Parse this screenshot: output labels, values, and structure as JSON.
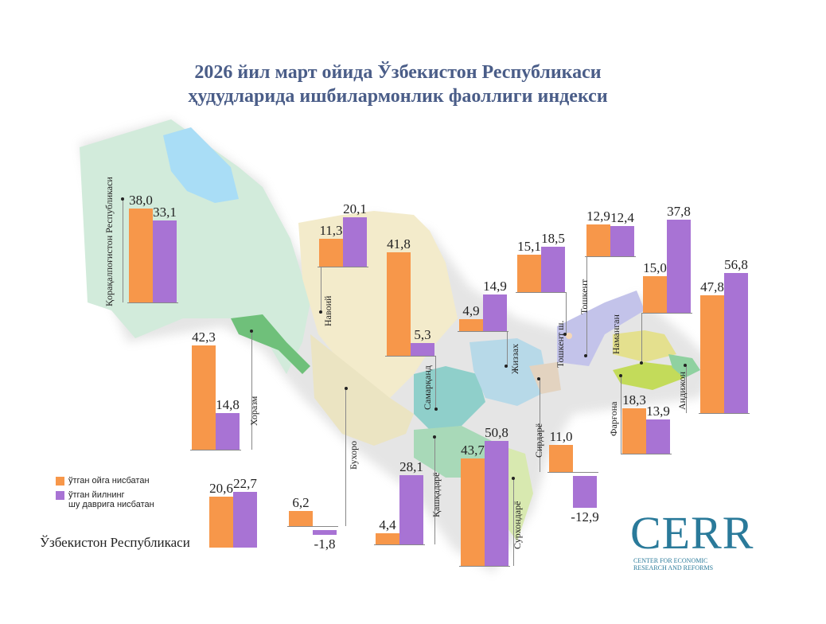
{
  "title_line1": "2026 йил март   ойида Ўзбекистон Республикаси",
  "title_line2": "ҳудудларида ишбилармонлик фаоллиги индекси",
  "colors": {
    "prev_month": "#f7974a",
    "prev_year": "#a873d4",
    "title": "#4a5d88",
    "logo": "#2a7a9a"
  },
  "legend": {
    "prev_month": "ўтган ойга нисбатан",
    "prev_year_line1": "ўтган йилнинг",
    "prev_year_line2": "шу даврига нисбатан"
  },
  "national_label": "Ўзбекистон Республикаси",
  "logo": {
    "text": "CERR",
    "sub1": "CENTER FOR ECONOMIC",
    "sub2": "RESEARCH AND REFORMS"
  },
  "chart_data": {
    "type": "bar",
    "title": "2026 йил март ойида Ўзбекистон Республикаси ҳудудларида ишбилармонлик фаоллиги индекси",
    "series": [
      {
        "name": "ўтган ойга нисбатан",
        "values": [
          38.0,
          11.3,
          41.8,
          4.9,
          15.1,
          12.9,
          15.0,
          47.8,
          42.3,
          18.3,
          6.2,
          4.4,
          43.7,
          11.0,
          20.6
        ]
      },
      {
        "name": "ўтган йилнинг шу даврига нисбатан",
        "values": [
          33.1,
          20.1,
          5.3,
          14.9,
          18.5,
          12.4,
          37.8,
          56.8,
          14.8,
          13.9,
          -1.8,
          28.1,
          50.8,
          -12.9,
          22.7
        ]
      }
    ],
    "categories": [
      "Қорақалпоғистон Республикаси",
      "Навоий",
      "Самарқанд",
      "Жиззах",
      "Тошкент ш.",
      "Тошкент",
      "Наманган",
      "Андижон",
      "Хоразм",
      "Фарғона",
      "Бухоро",
      "Қашқадарё",
      "Сурхондарё",
      "Сирдарё",
      "Ўзбекистон Республикаси"
    ],
    "value_labels_prev_month": [
      "38,0",
      "11,3",
      "41,8",
      "4,9",
      "15,1",
      "12,9",
      "15,0",
      "47,8",
      "42,3",
      "18,3",
      "6,2",
      "4,4",
      "43,7",
      "11,0",
      "20,6"
    ],
    "value_labels_prev_year": [
      "33,1",
      "20,1",
      "5,3",
      "14,9",
      "18,5",
      "12,4",
      "37,8",
      "56,8",
      "14,8",
      "13,9",
      "-1,8",
      "28,1",
      "50,8",
      "-12,9",
      "22,7"
    ],
    "legend_position": "bottom-left",
    "grid": false
  }
}
